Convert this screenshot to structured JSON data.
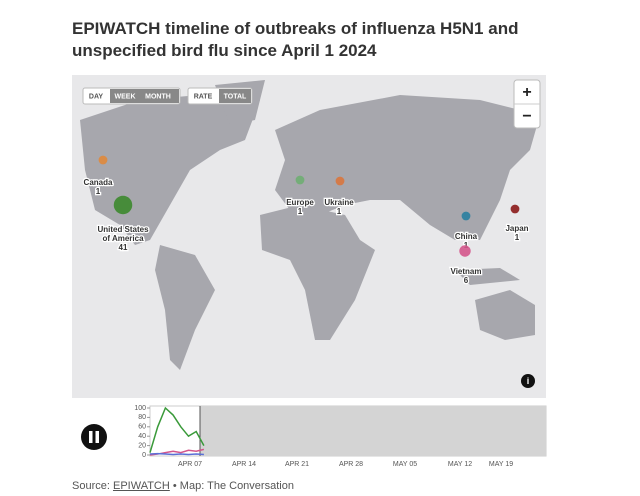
{
  "header": {
    "title": "EPIWATCH timeline of outbreaks of influenza H5N1 and unspecified bird flu since April 1 2024"
  },
  "controls": {
    "granularity": [
      "DAY",
      "WEEK",
      "MONTH"
    ],
    "metric": [
      "RATE",
      "TOTAL"
    ],
    "zoom": [
      "+",
      "−"
    ],
    "info": "i"
  },
  "map": {
    "markers": [
      {
        "label": "Canada",
        "count": 1,
        "color": "#e08a3c"
      },
      {
        "label": "United States of America",
        "count": 41,
        "color": "#3d8a2e"
      },
      {
        "label": "Europe",
        "count": 1,
        "color": "#6fae72"
      },
      {
        "label": "Ukraine",
        "count": 1,
        "color": "#d9773e"
      },
      {
        "label": "China",
        "count": 1,
        "color": "#2a7fa0"
      },
      {
        "label": "Japan",
        "count": 1,
        "color": "#8b1a1a"
      },
      {
        "label": "Vietnam",
        "count": 6,
        "color": "#d4568c"
      }
    ]
  },
  "timeline": {
    "ylim": [
      0,
      100
    ],
    "yticks": [
      0,
      20,
      40,
      60,
      80,
      100
    ],
    "xticks": [
      "APR 07",
      "APR 14",
      "APR 21",
      "APR 28",
      "MAY 05",
      "MAY 12",
      "MAY 19"
    ],
    "series": [
      {
        "color": "#3a9a3a",
        "values": [
          5,
          60,
          100,
          85,
          60,
          40,
          50,
          20
        ]
      },
      {
        "color": "#d4568c",
        "values": [
          0,
          2,
          5,
          8,
          5,
          10,
          8,
          12
        ]
      },
      {
        "color": "#5b6fd6",
        "values": [
          2,
          3,
          2,
          1,
          2,
          1,
          2,
          1
        ]
      }
    ]
  },
  "footer": {
    "prefix": "Source:",
    "link": "EPIWATCH",
    "suffix": "• Map: The Conversation"
  }
}
